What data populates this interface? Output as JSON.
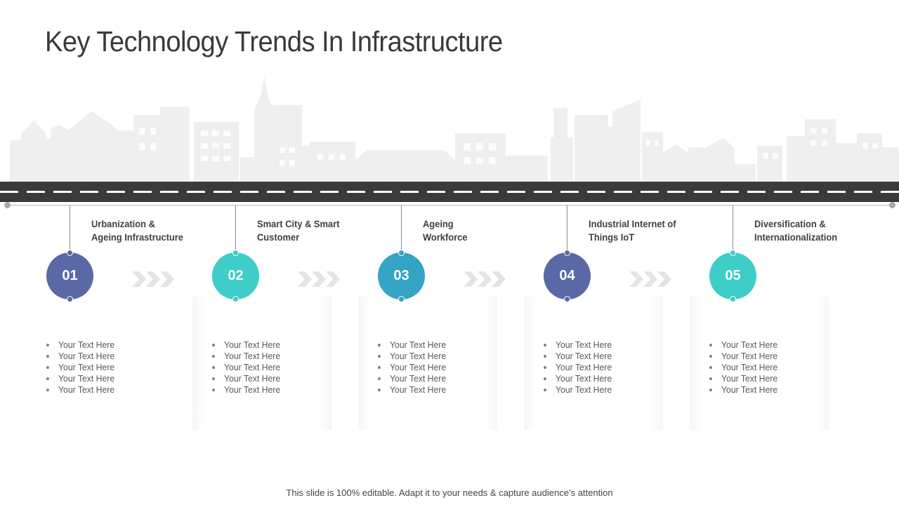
{
  "title": "Key Technology Trends In Infrastructure",
  "steps": [
    {
      "number": "01",
      "heading_line1": "Urbanization &",
      "heading_line2": "Ageing Infrastructure",
      "color": "#5a68a6",
      "bullets": [
        "Your Text Here",
        "Your Text Here",
        "Your Text Here",
        "Your Text Here",
        "Your Text Here"
      ]
    },
    {
      "number": "02",
      "heading_line1": "Smart City & Smart",
      "heading_line2": "Customer",
      "color": "#3ecdc9",
      "bullets": [
        "Your Text Here",
        "Your Text Here",
        "Your Text Here",
        "Your Text Here",
        "Your Text Here"
      ]
    },
    {
      "number": "03",
      "heading_line1": "Ageing",
      "heading_line2": "Workforce",
      "color": "#35a3c3",
      "bullets": [
        "Your Text Here",
        "Your Text Here",
        "Your Text Here",
        "Your Text Here",
        "Your Text Here"
      ]
    },
    {
      "number": "04",
      "heading_line1": "Industrial Internet of",
      "heading_line2": "Things IoT",
      "color": "#5a68a6",
      "bullets": [
        "Your Text Here",
        "Your Text Here",
        "Your Text Here",
        "Your Text Here",
        "Your Text Here"
      ]
    },
    {
      "number": "05",
      "heading_line1": "Diversification &",
      "heading_line2": "Internationalization",
      "color": "#3ecdc9",
      "bullets": [
        "Your Text Here",
        "Your Text Here",
        "Your Text Here",
        "Your Text Here",
        "Your Text Here"
      ]
    }
  ],
  "footer": "This slide is 100% editable. Adapt it to your needs & capture audience’s attention",
  "colors": {
    "road": "#3a3a3a",
    "skyline": "#efefef",
    "arrow": "#e4e4e4",
    "text": "#404040"
  },
  "icons": {
    "skyline": "city-skyline-icon",
    "arrow": "chevron-right-icon"
  }
}
